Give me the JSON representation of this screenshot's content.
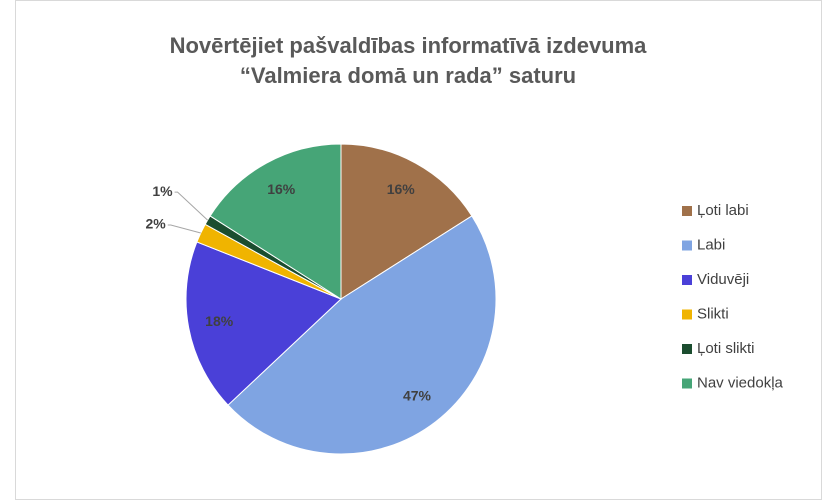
{
  "chart_data": {
    "type": "pie",
    "title": [
      "Novērtējiet pašvaldības informatīvā izdevuma",
      "“Valmiera domā un rada” saturu"
    ],
    "categories": [
      "Ļoti labi",
      "Labi",
      "Viduvēji",
      "Slikti",
      "Ļoti slikti",
      "Nav viedokļa"
    ],
    "values": [
      16,
      47,
      18,
      2,
      1,
      16
    ],
    "value_labels": [
      "16%",
      "47%",
      "18%",
      "2%",
      "1%",
      "16%"
    ],
    "colors": [
      "#a0714a",
      "#7fa4e2",
      "#4a40d8",
      "#f0b400",
      "#1b4d2f",
      "#46a577"
    ],
    "legend": "right"
  }
}
